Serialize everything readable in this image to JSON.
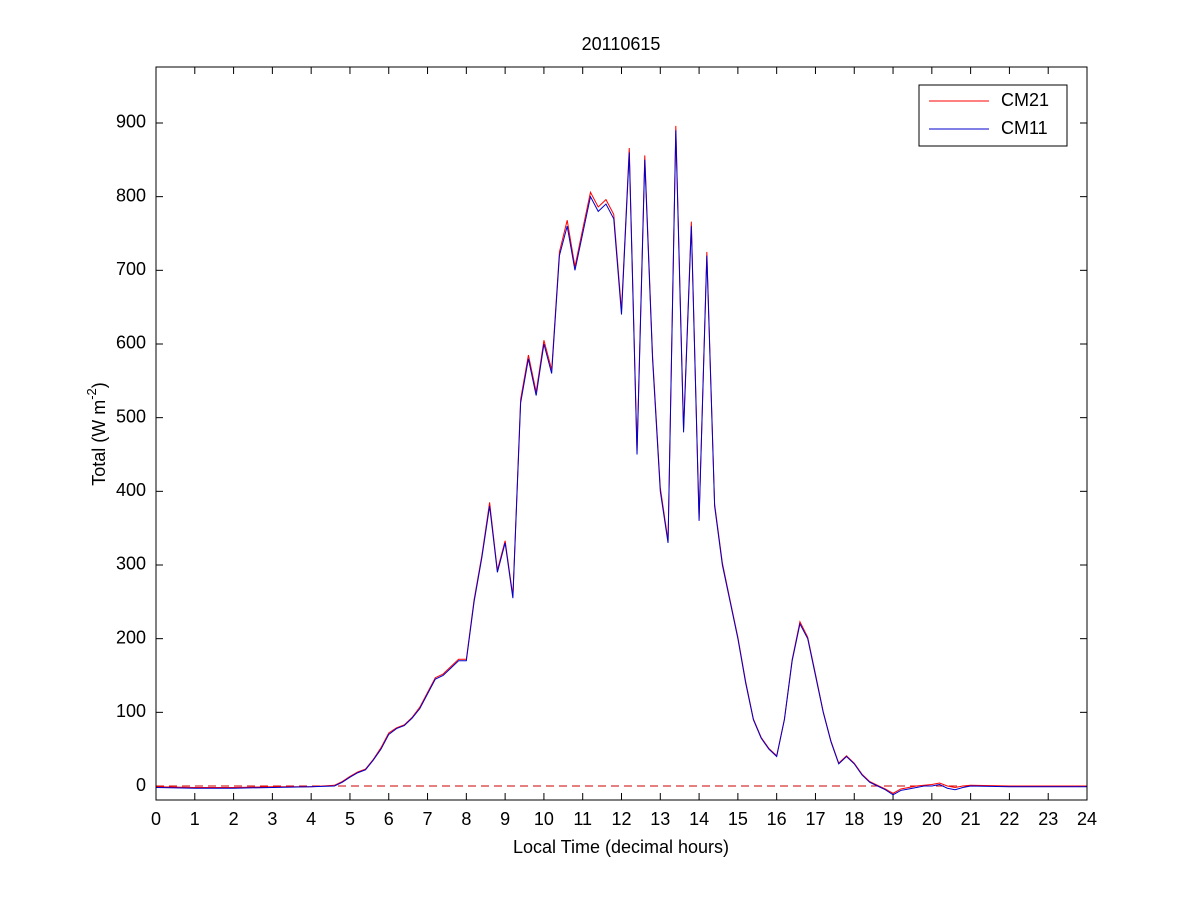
{
  "chart_data": {
    "type": "line",
    "title": "20110615",
    "xlabel": "Local Time (decimal hours)",
    "ylabel": {
      "text": "Total (W m",
      "superscript": "-2",
      "suffix": ")"
    },
    "x": [
      0,
      1,
      2,
      3,
      4,
      4.6,
      4.8,
      5.0,
      5.2,
      5.4,
      5.6,
      5.8,
      6.0,
      6.2,
      6.4,
      6.6,
      6.8,
      7.0,
      7.2,
      7.4,
      7.6,
      7.8,
      8.0,
      8.2,
      8.4,
      8.6,
      8.8,
      9.0,
      9.2,
      9.4,
      9.6,
      9.8,
      10.0,
      10.2,
      10.4,
      10.6,
      10.8,
      11.0,
      11.2,
      11.4,
      11.6,
      11.8,
      12.0,
      12.2,
      12.4,
      12.6,
      12.8,
      13.0,
      13.2,
      13.4,
      13.6,
      13.8,
      14.0,
      14.2,
      14.4,
      14.6,
      14.8,
      15.0,
      15.2,
      15.4,
      15.6,
      15.8,
      16.0,
      16.2,
      16.4,
      16.6,
      16.8,
      17.0,
      17.2,
      17.4,
      17.6,
      17.8,
      18.0,
      18.2,
      18.4,
      18.6,
      18.8,
      19.0,
      19.2,
      19.4,
      19.6,
      19.8,
      20.0,
      20.2,
      20.4,
      20.6,
      20.8,
      21.0,
      22,
      23,
      24
    ],
    "series": [
      {
        "name": "CM21",
        "color": "#ff0000",
        "values": [
          -1,
          -2,
          -2,
          -1,
          -1,
          1,
          6,
          13,
          19,
          23,
          36,
          52,
          72,
          79,
          83,
          93,
          107,
          127,
          147,
          152,
          162,
          172,
          172,
          253,
          313,
          385,
          293,
          333,
          258,
          525,
          585,
          535,
          605,
          565,
          725,
          768,
          705,
          756,
          806,
          786,
          796,
          776,
          646,
          866,
          455,
          856,
          585,
          405,
          333,
          896,
          485,
          766,
          363,
          725,
          383,
          303,
          252,
          202,
          142,
          91,
          66,
          51,
          41,
          91,
          172,
          223,
          202,
          152,
          101,
          61,
          31,
          41,
          31,
          16,
          6,
          1,
          -4,
          -10,
          -4,
          -2,
          0,
          1,
          2,
          4,
          0,
          -2,
          0,
          1,
          0,
          0,
          0
        ]
      },
      {
        "name": "CM11",
        "color": "#0000cc",
        "values": [
          -2,
          -3,
          -3,
          -2,
          -1,
          0,
          5,
          12,
          18,
          22,
          35,
          50,
          70,
          78,
          82,
          92,
          105,
          125,
          145,
          150,
          160,
          170,
          170,
          250,
          310,
          380,
          290,
          330,
          255,
          520,
          580,
          530,
          600,
          560,
          720,
          760,
          700,
          750,
          800,
          780,
          790,
          770,
          640,
          860,
          450,
          850,
          580,
          400,
          330,
          890,
          480,
          760,
          360,
          720,
          380,
          300,
          250,
          200,
          140,
          90,
          65,
          50,
          40,
          90,
          170,
          220,
          200,
          150,
          100,
          60,
          30,
          40,
          30,
          15,
          5,
          0,
          -5,
          -12,
          -6,
          -4,
          -2,
          0,
          0,
          2,
          -3,
          -5,
          -2,
          0,
          -1,
          -1,
          -1
        ]
      }
    ],
    "hline": {
      "value": 0,
      "color": "#cc0000",
      "style": "dashed"
    },
    "xlim": [
      0,
      24
    ],
    "xticks": [
      0,
      1,
      2,
      3,
      4,
      5,
      6,
      7,
      8,
      9,
      10,
      11,
      12,
      13,
      14,
      15,
      16,
      17,
      18,
      19,
      20,
      21,
      22,
      23,
      24
    ],
    "ylim": [
      -19,
      976
    ],
    "yticks": [
      0,
      100,
      200,
      300,
      400,
      500,
      600,
      700,
      800,
      900
    ],
    "legend": "northeast"
  }
}
